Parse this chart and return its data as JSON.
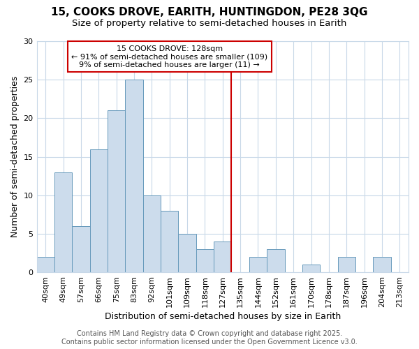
{
  "title1": "15, COOKS DROVE, EARITH, HUNTINGDON, PE28 3QG",
  "title2": "Size of property relative to semi-detached houses in Earith",
  "xlabel": "Distribution of semi-detached houses by size in Earith",
  "ylabel": "Number of semi-detached properties",
  "bar_labels": [
    "40sqm",
    "49sqm",
    "57sqm",
    "66sqm",
    "75sqm",
    "83sqm",
    "92sqm",
    "101sqm",
    "109sqm",
    "118sqm",
    "127sqm",
    "135sqm",
    "144sqm",
    "152sqm",
    "161sqm",
    "170sqm",
    "178sqm",
    "187sqm",
    "196sqm",
    "204sqm",
    "213sqm"
  ],
  "bar_values": [
    2,
    13,
    6,
    16,
    21,
    25,
    10,
    8,
    5,
    3,
    4,
    0,
    2,
    3,
    0,
    1,
    0,
    2,
    0,
    2,
    0
  ],
  "bar_color": "#ccdcec",
  "bar_edge_color": "#6699bb",
  "vline_x_idx": 10,
  "vline_color": "#cc0000",
  "annotation_title": "15 COOKS DROVE: 128sqm",
  "annotation_line1": "← 91% of semi-detached houses are smaller (109)",
  "annotation_line2": "9% of semi-detached houses are larger (11) →",
  "annotation_box_color": "#cc0000",
  "ylim": [
    0,
    30
  ],
  "yticks": [
    0,
    5,
    10,
    15,
    20,
    25,
    30
  ],
  "footer1": "Contains HM Land Registry data © Crown copyright and database right 2025.",
  "footer2": "Contains public sector information licensed under the Open Government Licence v3.0.",
  "bg_color": "#ffffff",
  "grid_color": "#c8d8e8",
  "title1_fontsize": 11,
  "title2_fontsize": 9.5,
  "axis_label_fontsize": 9,
  "tick_fontsize": 8,
  "annotation_fontsize": 8,
  "footer_fontsize": 7
}
